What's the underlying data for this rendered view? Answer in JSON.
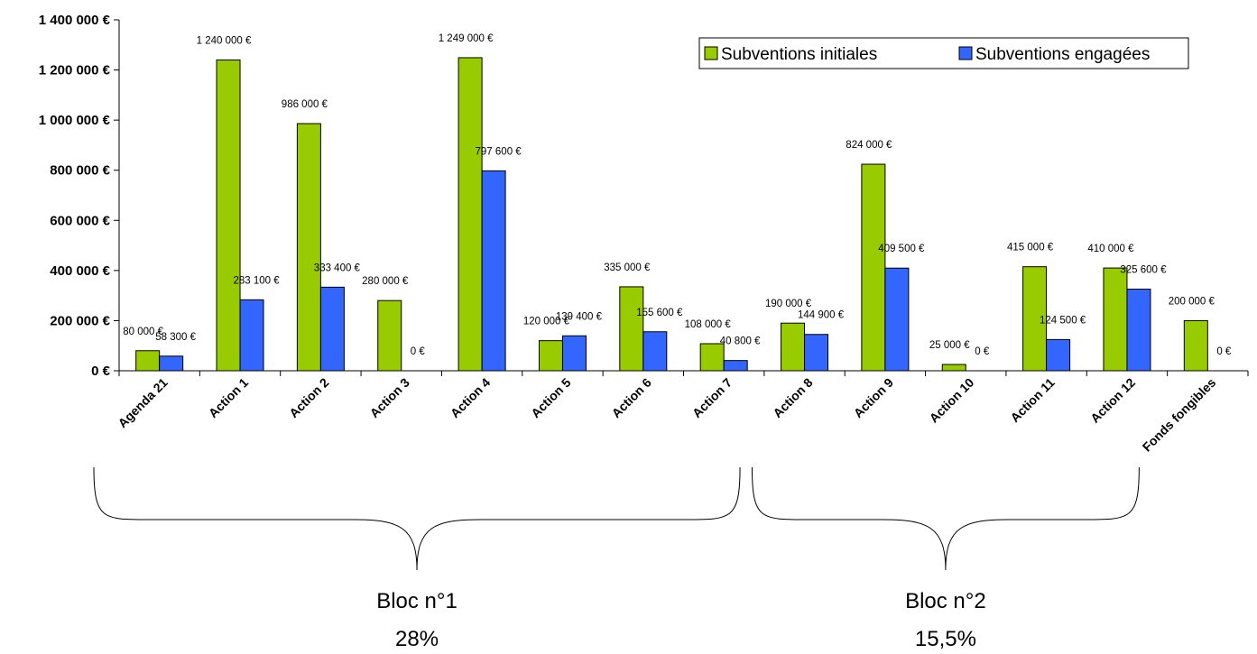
{
  "chart_data": {
    "type": "bar",
    "categories": [
      "Agenda 21",
      "Action 1",
      "Action 2",
      "Action 3",
      "Action 4",
      "Action 5",
      "Action 6",
      "Action 7",
      "Action 8",
      "Action 9",
      "Action 10",
      "Action 11",
      "Action 12",
      "Fonds fongibles"
    ],
    "series": [
      {
        "name": "Subventions initiales",
        "color": "#99cc00",
        "values": [
          80000,
          1240000,
          986000,
          280000,
          1249000,
          120000,
          335000,
          108000,
          190000,
          824000,
          25000,
          415000,
          410000,
          200000
        ],
        "labels": [
          "80 000 €",
          "1 240 000 €",
          "986 000 €",
          "280 000 €",
          "1 249 000 €",
          "120 000 €",
          "335 000 €",
          "108 000 €",
          "190 000 €",
          "824 000 €",
          "25 000 €",
          "415 000 €",
          "410 000 €",
          "200 000 €"
        ]
      },
      {
        "name": "Subventions engagées",
        "color": "#3366ff",
        "values": [
          58300,
          283100,
          333400,
          0,
          797600,
          139400,
          155600,
          40800,
          144900,
          409500,
          0,
          124500,
          325600,
          0
        ],
        "labels": [
          "58 300 €",
          "283 100 €",
          "333 400 €",
          "0 €",
          "797 600 €",
          "139 400 €",
          "155 600 €",
          "40 800 €",
          "144 900 €",
          "409 500 €",
          "0 €",
          "124 500 €",
          "325 600 €",
          "0 €"
        ]
      }
    ],
    "yticks": [
      {
        "value": 0,
        "label": "0 €"
      },
      {
        "value": 200000,
        "label": "200 000 €"
      },
      {
        "value": 400000,
        "label": "400 000 €"
      },
      {
        "value": 600000,
        "label": "600 000 €"
      },
      {
        "value": 800000,
        "label": "800 000 €"
      },
      {
        "value": 1000000,
        "label": "1 000 000 €"
      },
      {
        "value": 1200000,
        "label": "1 200 000 €"
      },
      {
        "value": 1400000,
        "label": "1 400 000 €"
      }
    ],
    "ylim": [
      0,
      1400000
    ],
    "legend_position": "top-right",
    "grid": false,
    "groups": [
      {
        "name": "Bloc n°1",
        "share": "28%",
        "from": "Agenda 21",
        "to": "Action 7"
      },
      {
        "name": "Bloc n°2",
        "share": "15,5%",
        "from": "Action 7",
        "to": "Action 12"
      }
    ],
    "title": "",
    "xlabel": "",
    "ylabel": ""
  }
}
